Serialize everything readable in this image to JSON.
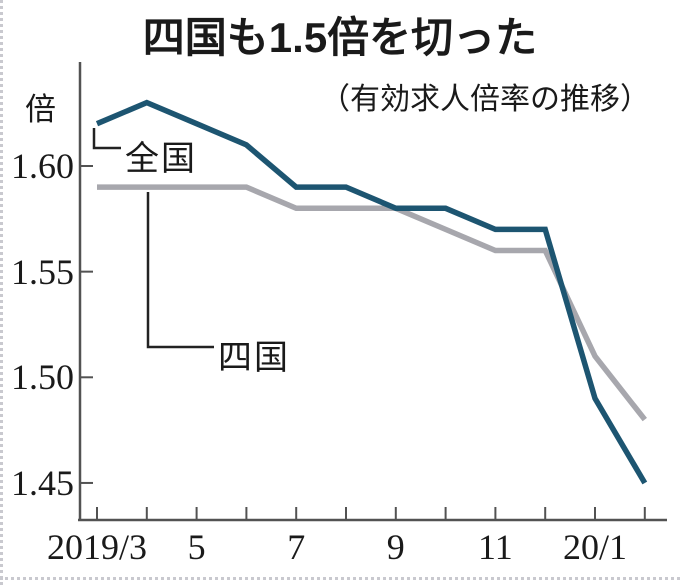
{
  "chart_data": {
    "type": "line",
    "title": "四国も1.5倍を切った",
    "subtitle": "（有効求人倍率の推移）",
    "unit_label": "倍",
    "grid": false,
    "legend_position": "inline-callouts",
    "ylim": [
      1.43,
      1.645
    ],
    "y_ticks": [
      1.6,
      1.55,
      1.5,
      1.45
    ],
    "y_tick_labels": [
      "1.60",
      "1.55",
      "1.50",
      "1.45"
    ],
    "categories": [
      "2019/3",
      "2019/4",
      "2019/5",
      "2019/6",
      "2019/7",
      "2019/8",
      "2019/9",
      "2019/10",
      "2019/11",
      "2019/12",
      "2020/1",
      "2020/2"
    ],
    "x_tick_labels": [
      {
        "index": 0,
        "label": "2019/3"
      },
      {
        "index": 2,
        "label": "5"
      },
      {
        "index": 4,
        "label": "7"
      },
      {
        "index": 6,
        "label": "9"
      },
      {
        "index": 8,
        "label": "11"
      },
      {
        "index": 10,
        "label": "20/1"
      }
    ],
    "series": [
      {
        "id": "zenkoku",
        "name": "全国",
        "color": "#1d5571",
        "values": [
          1.62,
          1.63,
          1.62,
          1.61,
          1.59,
          1.59,
          1.58,
          1.58,
          1.57,
          1.57,
          1.49,
          1.45
        ]
      },
      {
        "id": "shikoku",
        "name": "四国",
        "color": "#a7a7ad",
        "values": [
          1.59,
          1.59,
          1.59,
          1.59,
          1.58,
          1.58,
          1.58,
          1.57,
          1.56,
          1.56,
          1.51,
          1.48
        ]
      }
    ],
    "axis_color": "#525252",
    "connector_color": "#222222"
  }
}
